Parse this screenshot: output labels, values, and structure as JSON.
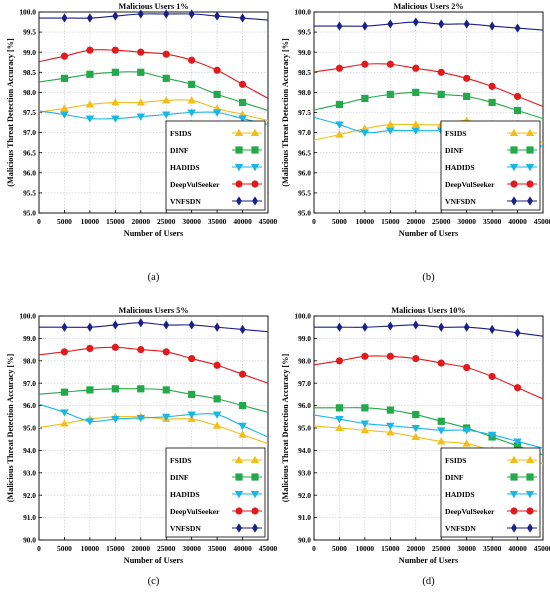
{
  "panel_captions": [
    "(a)",
    "(b)",
    "(c)",
    "(d)"
  ],
  "colors": {
    "FSIDS": "#f2be1a",
    "DINF": "#22aa4a",
    "HADIDS": "#19b6e6",
    "DeepVulSeeker": "#e31a1c",
    "VNFSDN": "#1a1f8a"
  },
  "chart_data": [
    {
      "type": "line",
      "title": "Malicious Users 1%",
      "xlabel": "Number of Users",
      "ylabel": "(Malicious Threat Detection Accuracy [%]",
      "xlim": [
        0,
        45000
      ],
      "ylim": [
        95.0,
        100.0
      ],
      "x_ticks": [
        "0",
        "5000",
        "10000",
        "15000",
        "20000",
        "25000",
        "30000",
        "35000",
        "40000",
        "45000"
      ],
      "y_ticks": [
        "95.0",
        "95.5",
        "96.0",
        "96.5",
        "97.0",
        "97.5",
        "98.0",
        "98.5",
        "99.0",
        "99.5",
        "100.0"
      ],
      "grid": true,
      "legend_position": "bottom-right",
      "x": [
        5000,
        10000,
        15000,
        20000,
        25000,
        30000,
        35000,
        40000
      ],
      "series": [
        {
          "name": "FSIDS",
          "values": [
            97.6,
            97.7,
            97.75,
            97.75,
            97.8,
            97.8,
            97.6,
            97.45
          ]
        },
        {
          "name": "DINF",
          "values": [
            98.35,
            98.45,
            98.5,
            98.5,
            98.35,
            98.2,
            97.95,
            97.75
          ]
        },
        {
          "name": "HADIDS",
          "values": [
            97.45,
            97.35,
            97.35,
            97.4,
            97.45,
            97.5,
            97.5,
            97.35
          ]
        },
        {
          "name": "DeepVulSeeker",
          "values": [
            98.9,
            99.05,
            99.05,
            99.0,
            98.95,
            98.8,
            98.55,
            98.2
          ]
        },
        {
          "name": "VNFSDN",
          "values": [
            99.85,
            99.85,
            99.9,
            99.95,
            99.95,
            99.95,
            99.9,
            99.85
          ]
        }
      ]
    },
    {
      "type": "line",
      "title": "Malicious Users 2%",
      "xlabel": "Number of Users",
      "ylabel": "(Malicious Threat Detection Accuracy [%]",
      "xlim": [
        0,
        45000
      ],
      "ylim": [
        95.0,
        100.0
      ],
      "x_ticks": [
        "0",
        "5000",
        "10000",
        "15000",
        "20000",
        "25000",
        "30000",
        "35000",
        "40000",
        "45000"
      ],
      "y_ticks": [
        "95.0",
        "95.5",
        "96.0",
        "96.5",
        "97.0",
        "97.5",
        "98.0",
        "98.5",
        "99.0",
        "99.5",
        "100.0"
      ],
      "grid": true,
      "legend_position": "bottom-right",
      "x": [
        5000,
        10000,
        15000,
        20000,
        25000,
        30000,
        35000,
        40000
      ],
      "series": [
        {
          "name": "FSIDS",
          "values": [
            96.95,
            97.1,
            97.2,
            97.2,
            97.2,
            97.3,
            97.15,
            96.95
          ]
        },
        {
          "name": "DINF",
          "values": [
            97.7,
            97.85,
            97.95,
            98.0,
            97.95,
            97.9,
            97.75,
            97.55
          ]
        },
        {
          "name": "HADIDS",
          "values": [
            97.2,
            97.0,
            97.05,
            97.05,
            97.05,
            97.1,
            97.05,
            96.85
          ]
        },
        {
          "name": "DeepVulSeeker",
          "values": [
            98.6,
            98.7,
            98.7,
            98.6,
            98.5,
            98.35,
            98.15,
            97.9
          ]
        },
        {
          "name": "VNFSDN",
          "values": [
            99.65,
            99.65,
            99.7,
            99.75,
            99.7,
            99.7,
            99.65,
            99.6
          ]
        }
      ]
    },
    {
      "type": "line",
      "title": "Malicious Users 5%",
      "xlabel": "Number of Users",
      "ylabel": "(Malicious Threat Detection Accuracy [%]",
      "xlim": [
        0,
        45000
      ],
      "ylim": [
        90.0,
        100.0
      ],
      "x_ticks": [
        "0",
        "5000",
        "10000",
        "15000",
        "20000",
        "25000",
        "30000",
        "35000",
        "40000",
        "45000"
      ],
      "y_ticks": [
        "90.0",
        "91.0",
        "92.0",
        "93.0",
        "94.0",
        "95.0",
        "96.0",
        "97.0",
        "98.0",
        "99.0",
        "100.0"
      ],
      "grid": true,
      "legend_position": "bottom-right",
      "x": [
        5000,
        10000,
        15000,
        20000,
        25000,
        30000,
        35000,
        40000
      ],
      "series": [
        {
          "name": "FSIDS",
          "values": [
            95.2,
            95.4,
            95.5,
            95.5,
            95.4,
            95.4,
            95.1,
            94.7
          ]
        },
        {
          "name": "DINF",
          "values": [
            96.6,
            96.7,
            96.75,
            96.75,
            96.7,
            96.5,
            96.3,
            96.0
          ]
        },
        {
          "name": "HADIDS",
          "values": [
            95.7,
            95.3,
            95.4,
            95.45,
            95.5,
            95.6,
            95.6,
            95.1
          ]
        },
        {
          "name": "DeepVulSeeker",
          "values": [
            98.4,
            98.55,
            98.6,
            98.5,
            98.4,
            98.1,
            97.8,
            97.4
          ]
        },
        {
          "name": "VNFSDN",
          "values": [
            99.5,
            99.5,
            99.6,
            99.7,
            99.6,
            99.6,
            99.5,
            99.4
          ]
        }
      ]
    },
    {
      "type": "line",
      "title": "Malicious Users 10%",
      "xlabel": "Number of Users",
      "ylabel": "(Malicious Threat Detection Accuracy [%]",
      "xlim": [
        0,
        45000
      ],
      "ylim": [
        90.0,
        100.0
      ],
      "x_ticks": [
        "0",
        "5000",
        "10000",
        "15000",
        "20000",
        "25000",
        "30000",
        "35000",
        "40000",
        "45000"
      ],
      "y_ticks": [
        "90.0",
        "91.0",
        "92.0",
        "93.0",
        "94.0",
        "95.0",
        "96.0",
        "97.0",
        "98.0",
        "99.0",
        "100.0"
      ],
      "grid": true,
      "legend_position": "bottom-right",
      "x": [
        5000,
        10000,
        15000,
        20000,
        25000,
        30000,
        35000,
        40000
      ],
      "series": [
        {
          "name": "FSIDS",
          "values": [
            95.0,
            94.9,
            94.8,
            94.6,
            94.4,
            94.3,
            94.0,
            93.7
          ]
        },
        {
          "name": "DINF",
          "values": [
            95.9,
            95.9,
            95.8,
            95.6,
            95.3,
            95.0,
            94.6,
            94.2
          ]
        },
        {
          "name": "HADIDS",
          "values": [
            95.4,
            95.2,
            95.1,
            95.0,
            94.9,
            94.9,
            94.7,
            94.4
          ]
        },
        {
          "name": "DeepVulSeeker",
          "values": [
            98.0,
            98.2,
            98.2,
            98.1,
            97.9,
            97.7,
            97.3,
            96.8
          ]
        },
        {
          "name": "VNFSDN",
          "values": [
            99.5,
            99.5,
            99.55,
            99.6,
            99.5,
            99.5,
            99.4,
            99.25
          ]
        }
      ]
    }
  ]
}
